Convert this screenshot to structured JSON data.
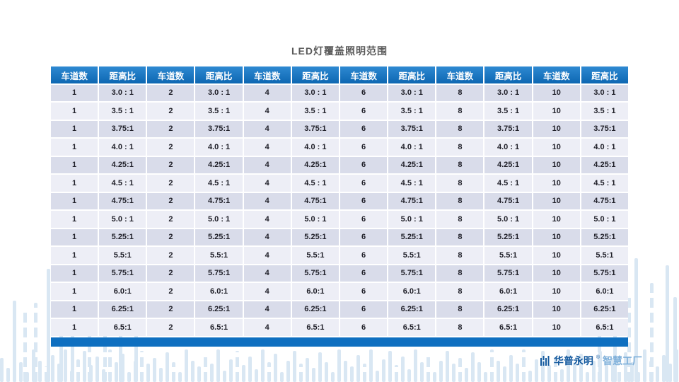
{
  "title": "LED灯覆盖照明范围",
  "table": {
    "header_labels": [
      "车道数",
      "距高比",
      "车道数",
      "距高比",
      "车道数",
      "距高比",
      "车道数",
      "距高比",
      "车道数",
      "距高比",
      "车道数",
      "距高比"
    ],
    "lanes": [
      "1",
      "2",
      "4",
      "6",
      "8",
      "10"
    ],
    "ratios": [
      "3.0 : 1",
      "3.5 : 1",
      "3.75:1",
      "4.0 : 1",
      "4.25:1",
      "4.5 : 1",
      "4.75:1",
      "5.0 : 1",
      "5.25:1",
      "5.5:1",
      "5.75:1",
      "6.0:1",
      "6.25:1",
      "6.5:1"
    ]
  },
  "chart_data": {
    "type": "table",
    "title": "LED灯覆盖照明范围",
    "columns": [
      "车道数",
      "距高比",
      "车道数",
      "距高比",
      "车道数",
      "距高比",
      "车道数",
      "距高比",
      "车道数",
      "距高比",
      "车道数",
      "距高比"
    ],
    "lane_counts": [
      1,
      2,
      4,
      6,
      8,
      10
    ],
    "ratio_values": [
      "3.0 : 1",
      "3.5 : 1",
      "3.75:1",
      "4.0 : 1",
      "4.25:1",
      "4.5 : 1",
      "4.75:1",
      "5.0 : 1",
      "5.25:1",
      "5.5:1",
      "5.75:1",
      "6.0:1",
      "6.25:1",
      "6.5:1"
    ],
    "note": "each row repeats the same ratio for every lane-count column"
  },
  "footer": {
    "brand": "华普永明",
    "reg_mark": "®",
    "suffix": "智慧工厂"
  },
  "colors": {
    "header_blue_top": "#2e89d2",
    "header_blue_bottom": "#0d67b2",
    "row_odd": "#d9dcea",
    "row_even": "#edeef6",
    "footer_bar": "#0e6fc0",
    "accent_text": "#14599e",
    "decor_bar": "#d9e7f3"
  }
}
